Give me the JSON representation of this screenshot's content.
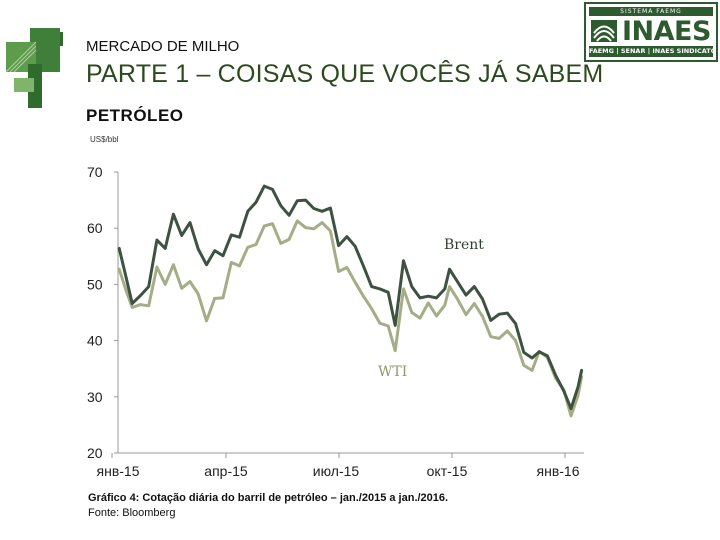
{
  "header": {
    "subtitle": "MERCADO DE MILHO",
    "title": "PARTE 1 – COISAS QUE VOCÊS JÁ SABEM",
    "section": "PETRÓLEO"
  },
  "brand": {
    "top_band": "SISTEMA FAEMG",
    "name": "INAES",
    "bottom_band": "FAEMG | SENAR | INAES SINDICATOS",
    "color": "#2d5a2e"
  },
  "chart_data": {
    "type": "line",
    "unit_label": "US$/bbl",
    "ylim": [
      20,
      70
    ],
    "yticks": [
      "70",
      "60",
      "50",
      "40",
      "30",
      "20"
    ],
    "xticks": [
      "янв-15",
      "апр-15",
      "июл-15",
      "окт-15",
      "янв-16"
    ],
    "x_range": [
      "2015-01-01",
      "2016-01-31"
    ],
    "grid": false,
    "series": [
      {
        "name": "Brent",
        "color": "#3d5240",
        "points": [
          [
            "2015-01-02",
            56.4
          ],
          [
            "2015-01-08",
            51.1
          ],
          [
            "2015-01-13",
            46.6
          ],
          [
            "2015-01-20",
            48.0
          ],
          [
            "2015-01-27",
            49.6
          ],
          [
            "2015-02-03",
            57.9
          ],
          [
            "2015-02-10",
            56.4
          ],
          [
            "2015-02-17",
            62.5
          ],
          [
            "2015-02-24",
            58.7
          ],
          [
            "2015-03-03",
            61.0
          ],
          [
            "2015-03-10",
            56.3
          ],
          [
            "2015-03-17",
            53.5
          ],
          [
            "2015-03-24",
            56.0
          ],
          [
            "2015-03-31",
            55.1
          ],
          [
            "2015-04-07",
            58.8
          ],
          [
            "2015-04-14",
            58.4
          ],
          [
            "2015-04-21",
            63.0
          ],
          [
            "2015-04-28",
            64.6
          ],
          [
            "2015-05-05",
            67.5
          ],
          [
            "2015-05-12",
            66.9
          ],
          [
            "2015-05-19",
            64.0
          ],
          [
            "2015-05-26",
            62.3
          ],
          [
            "2015-06-02",
            64.9
          ],
          [
            "2015-06-09",
            65.0
          ],
          [
            "2015-06-16",
            63.5
          ],
          [
            "2015-06-23",
            63.0
          ],
          [
            "2015-06-30",
            63.6
          ],
          [
            "2015-07-07",
            56.9
          ],
          [
            "2015-07-14",
            58.5
          ],
          [
            "2015-07-21",
            56.8
          ],
          [
            "2015-07-28",
            53.3
          ],
          [
            "2015-08-04",
            49.6
          ],
          [
            "2015-08-11",
            49.2
          ],
          [
            "2015-08-18",
            48.6
          ],
          [
            "2015-08-24",
            42.7
          ],
          [
            "2015-08-31",
            54.2
          ],
          [
            "2015-09-07",
            49.6
          ],
          [
            "2015-09-14",
            47.6
          ],
          [
            "2015-09-21",
            47.9
          ],
          [
            "2015-09-28",
            47.6
          ],
          [
            "2015-10-05",
            49.2
          ],
          [
            "2015-10-09",
            52.7
          ],
          [
            "2015-10-16",
            50.4
          ],
          [
            "2015-10-23",
            48.1
          ],
          [
            "2015-10-30",
            49.6
          ],
          [
            "2015-11-06",
            47.4
          ],
          [
            "2015-11-13",
            43.6
          ],
          [
            "2015-11-20",
            44.7
          ],
          [
            "2015-11-27",
            44.9
          ],
          [
            "2015-12-04",
            43.0
          ],
          [
            "2015-12-11",
            37.9
          ],
          [
            "2015-12-18",
            36.9
          ],
          [
            "2015-12-24",
            38.0
          ],
          [
            "2015-12-31",
            37.3
          ],
          [
            "2016-01-07",
            33.8
          ],
          [
            "2016-01-14",
            31.0
          ],
          [
            "2016-01-20",
            27.9
          ],
          [
            "2016-01-26",
            31.8
          ],
          [
            "2016-01-29",
            34.7
          ]
        ]
      },
      {
        "name": "WTI",
        "color": "#a4ad86",
        "points": [
          [
            "2015-01-02",
            52.7
          ],
          [
            "2015-01-08",
            48.8
          ],
          [
            "2015-01-13",
            45.9
          ],
          [
            "2015-01-20",
            46.4
          ],
          [
            "2015-01-27",
            46.2
          ],
          [
            "2015-02-03",
            53.1
          ],
          [
            "2015-02-10",
            50.0
          ],
          [
            "2015-02-17",
            53.5
          ],
          [
            "2015-02-24",
            49.3
          ],
          [
            "2015-03-03",
            50.5
          ],
          [
            "2015-03-10",
            48.3
          ],
          [
            "2015-03-17",
            43.5
          ],
          [
            "2015-03-24",
            47.5
          ],
          [
            "2015-03-31",
            47.6
          ],
          [
            "2015-04-07",
            53.9
          ],
          [
            "2015-04-14",
            53.3
          ],
          [
            "2015-04-21",
            56.6
          ],
          [
            "2015-04-28",
            57.1
          ],
          [
            "2015-05-05",
            60.4
          ],
          [
            "2015-05-12",
            60.8
          ],
          [
            "2015-05-19",
            57.3
          ],
          [
            "2015-05-26",
            58.0
          ],
          [
            "2015-06-02",
            61.3
          ],
          [
            "2015-06-09",
            60.1
          ],
          [
            "2015-06-16",
            59.9
          ],
          [
            "2015-06-23",
            61.0
          ],
          [
            "2015-06-30",
            59.5
          ],
          [
            "2015-07-07",
            52.3
          ],
          [
            "2015-07-14",
            53.0
          ],
          [
            "2015-07-21",
            50.4
          ],
          [
            "2015-07-28",
            47.9
          ],
          [
            "2015-08-04",
            45.7
          ],
          [
            "2015-08-11",
            43.1
          ],
          [
            "2015-08-18",
            42.6
          ],
          [
            "2015-08-24",
            38.2
          ],
          [
            "2015-08-31",
            49.2
          ],
          [
            "2015-09-07",
            45.0
          ],
          [
            "2015-09-14",
            44.0
          ],
          [
            "2015-09-21",
            46.7
          ],
          [
            "2015-09-28",
            44.4
          ],
          [
            "2015-10-05",
            46.3
          ],
          [
            "2015-10-09",
            49.6
          ],
          [
            "2015-10-16",
            47.3
          ],
          [
            "2015-10-23",
            44.6
          ],
          [
            "2015-10-30",
            46.6
          ],
          [
            "2015-11-06",
            44.3
          ],
          [
            "2015-11-13",
            40.7
          ],
          [
            "2015-11-20",
            40.4
          ],
          [
            "2015-11-27",
            41.7
          ],
          [
            "2015-12-04",
            40.0
          ],
          [
            "2015-12-11",
            35.6
          ],
          [
            "2015-12-18",
            34.7
          ],
          [
            "2015-12-24",
            38.1
          ],
          [
            "2015-12-31",
            37.0
          ],
          [
            "2016-01-07",
            33.3
          ],
          [
            "2016-01-14",
            31.2
          ],
          [
            "2016-01-20",
            26.6
          ],
          [
            "2016-01-26",
            30.3
          ],
          [
            "2016-01-29",
            33.6
          ]
        ]
      }
    ]
  },
  "footer": {
    "caption": "Gráfico 4: Cotação diária do barril de petróleo – jan./2015 a jan./2016.",
    "source": "Fonte: Bloomberg"
  }
}
